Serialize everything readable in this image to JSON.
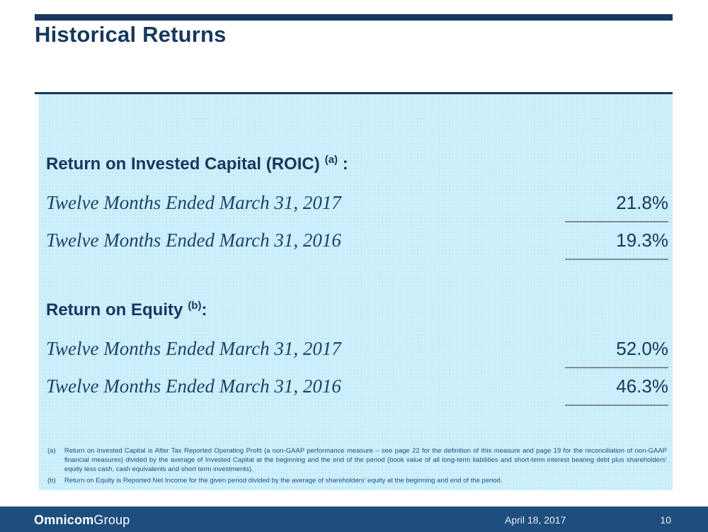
{
  "slide": {
    "title": "Historical Returns",
    "sections": [
      {
        "heading": "Return on Invested Capital (ROIC)",
        "heading_sup": "(a)",
        "heading_suffix": " :",
        "rows": [
          {
            "label": "Twelve Months Ended March 31, 2017",
            "value": "21.8%"
          },
          {
            "label": "Twelve Months Ended March 31, 2016",
            "value": "19.3%"
          }
        ]
      },
      {
        "heading": "Return on Equity",
        "heading_sup": "(b)",
        "heading_suffix": ":",
        "rows": [
          {
            "label": "Twelve Months Ended March 31, 2017",
            "value": "52.0%"
          },
          {
            "label": "Twelve Months Ended March 31, 2016",
            "value": "46.3%"
          }
        ]
      }
    ],
    "footnotes": [
      {
        "marker": "(a)",
        "text": "Return on Invested Capital is After Tax Reported Operating Profit (a non-GAAP performance measure – see page 22 for the definition of this measure and page 19 for the reconciliation of non-GAAP financial measures) divided by the average of Invested Capital at the beginning and the end of the period (book value of all long-term liabilities and short-term interest bearing debt plus shareholders’ equity less cash, cash equivalents and short term investments)."
      },
      {
        "marker": "(b)",
        "text": "Return on Equity is Reported Net Income for the given period divided by the average of shareholders’ equity at the beginning and end of the period."
      }
    ],
    "footer": {
      "logo_bold": "Omnicom",
      "logo_light": "Group",
      "date": "April 18, 2017",
      "page": "10"
    },
    "colors": {
      "navy": "#17375E",
      "footer_blue": "#1E4E7E",
      "panel_blue": "#C7EDFA",
      "rule_gray": "#7E8C96",
      "footnote_blue": "#1F4E79"
    }
  }
}
